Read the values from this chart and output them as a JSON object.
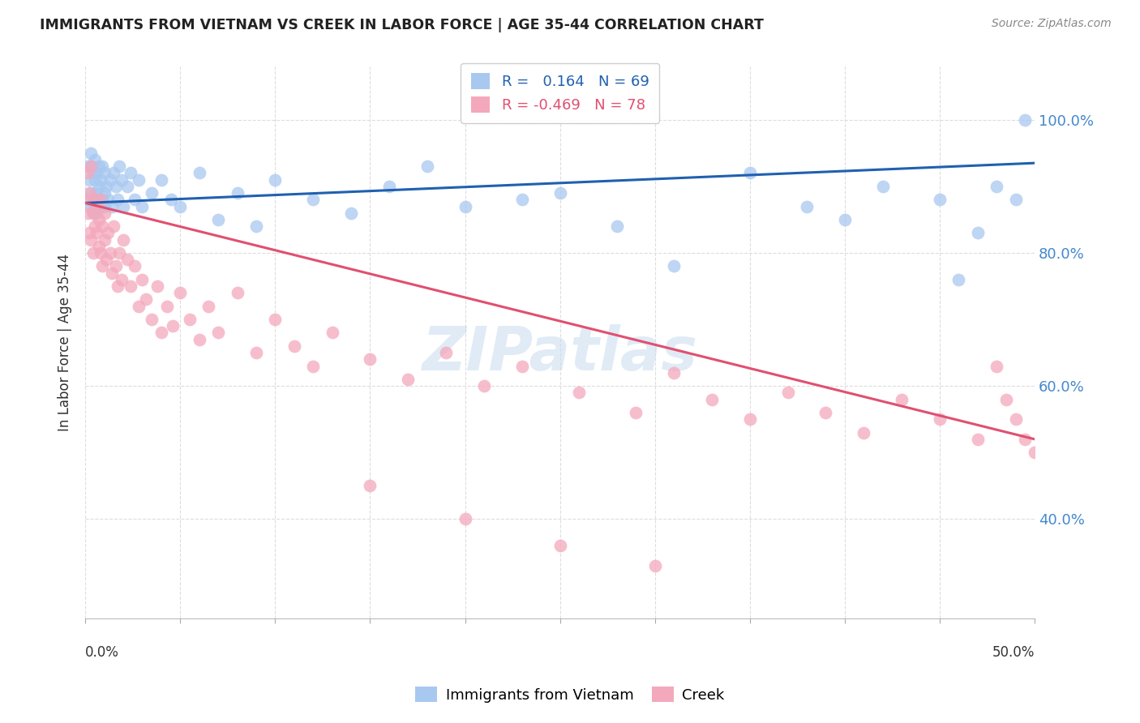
{
  "title": "IMMIGRANTS FROM VIETNAM VS CREEK IN LABOR FORCE | AGE 35-44 CORRELATION CHART",
  "source": "Source: ZipAtlas.com",
  "ylabel": "In Labor Force | Age 35-44",
  "legend_label1": "Immigrants from Vietnam",
  "legend_label2": "Creek",
  "r1": 0.164,
  "n1": 69,
  "r2": -0.469,
  "n2": 78,
  "color_blue": "#A8C8F0",
  "color_pink": "#F4A8BC",
  "color_line_blue": "#2060B0",
  "color_line_pink": "#E05070",
  "xlim": [
    0.0,
    0.5
  ],
  "ylim": [
    0.25,
    1.08
  ],
  "blue_line_x0": 0.0,
  "blue_line_y0": 0.875,
  "blue_line_x1": 0.5,
  "blue_line_y1": 0.935,
  "pink_line_x0": 0.0,
  "pink_line_y0": 0.875,
  "pink_line_x1": 0.5,
  "pink_line_y1": 0.52,
  "scatter_blue_x": [
    0.001,
    0.001,
    0.002,
    0.002,
    0.003,
    0.003,
    0.003,
    0.004,
    0.004,
    0.004,
    0.005,
    0.005,
    0.005,
    0.006,
    0.006,
    0.006,
    0.007,
    0.007,
    0.007,
    0.008,
    0.008,
    0.009,
    0.009,
    0.01,
    0.01,
    0.01,
    0.011,
    0.012,
    0.013,
    0.014,
    0.015,
    0.016,
    0.017,
    0.018,
    0.019,
    0.02,
    0.022,
    0.024,
    0.026,
    0.028,
    0.03,
    0.035,
    0.04,
    0.045,
    0.05,
    0.06,
    0.07,
    0.08,
    0.09,
    0.1,
    0.12,
    0.14,
    0.16,
    0.18,
    0.2,
    0.23,
    0.25,
    0.28,
    0.31,
    0.35,
    0.38,
    0.4,
    0.42,
    0.45,
    0.46,
    0.47,
    0.48,
    0.49,
    0.495
  ],
  "scatter_blue_y": [
    0.93,
    0.88,
    0.91,
    0.87,
    0.95,
    0.89,
    0.93,
    0.88,
    0.92,
    0.86,
    0.91,
    0.87,
    0.94,
    0.89,
    0.92,
    0.86,
    0.88,
    0.93,
    0.9,
    0.87,
    0.91,
    0.88,
    0.93,
    0.89,
    0.87,
    0.92,
    0.9,
    0.88,
    0.91,
    0.87,
    0.92,
    0.9,
    0.88,
    0.93,
    0.91,
    0.87,
    0.9,
    0.92,
    0.88,
    0.91,
    0.87,
    0.89,
    0.91,
    0.88,
    0.87,
    0.92,
    0.85,
    0.89,
    0.84,
    0.91,
    0.88,
    0.86,
    0.9,
    0.93,
    0.87,
    0.88,
    0.89,
    0.84,
    0.78,
    0.92,
    0.87,
    0.85,
    0.9,
    0.88,
    0.76,
    0.83,
    0.9,
    0.88,
    1.0
  ],
  "scatter_pink_x": [
    0.001,
    0.001,
    0.002,
    0.002,
    0.003,
    0.003,
    0.003,
    0.004,
    0.004,
    0.005,
    0.005,
    0.006,
    0.006,
    0.007,
    0.007,
    0.008,
    0.008,
    0.009,
    0.009,
    0.01,
    0.01,
    0.011,
    0.012,
    0.013,
    0.014,
    0.015,
    0.016,
    0.017,
    0.018,
    0.019,
    0.02,
    0.022,
    0.024,
    0.026,
    0.028,
    0.03,
    0.032,
    0.035,
    0.038,
    0.04,
    0.043,
    0.046,
    0.05,
    0.055,
    0.06,
    0.065,
    0.07,
    0.08,
    0.09,
    0.1,
    0.11,
    0.12,
    0.13,
    0.15,
    0.17,
    0.19,
    0.21,
    0.23,
    0.26,
    0.29,
    0.31,
    0.33,
    0.35,
    0.37,
    0.39,
    0.41,
    0.43,
    0.45,
    0.47,
    0.48,
    0.485,
    0.49,
    0.495,
    0.5,
    0.15,
    0.2,
    0.25,
    0.3
  ],
  "scatter_pink_y": [
    0.92,
    0.86,
    0.89,
    0.83,
    0.88,
    0.82,
    0.93,
    0.86,
    0.8,
    0.88,
    0.84,
    0.87,
    0.83,
    0.85,
    0.81,
    0.88,
    0.8,
    0.84,
    0.78,
    0.86,
    0.82,
    0.79,
    0.83,
    0.8,
    0.77,
    0.84,
    0.78,
    0.75,
    0.8,
    0.76,
    0.82,
    0.79,
    0.75,
    0.78,
    0.72,
    0.76,
    0.73,
    0.7,
    0.75,
    0.68,
    0.72,
    0.69,
    0.74,
    0.7,
    0.67,
    0.72,
    0.68,
    0.74,
    0.65,
    0.7,
    0.66,
    0.63,
    0.68,
    0.64,
    0.61,
    0.65,
    0.6,
    0.63,
    0.59,
    0.56,
    0.62,
    0.58,
    0.55,
    0.59,
    0.56,
    0.53,
    0.58,
    0.55,
    0.52,
    0.63,
    0.58,
    0.55,
    0.52,
    0.5,
    0.45,
    0.4,
    0.36,
    0.33
  ],
  "watermark_text": "ZIPatlas",
  "background_color": "#FFFFFF",
  "grid_color": "#DDDDDD",
  "ytick_vals": [
    0.4,
    0.6,
    0.8,
    1.0
  ],
  "ytick_labels": [
    "40.0%",
    "60.0%",
    "80.0%",
    "100.0%"
  ]
}
